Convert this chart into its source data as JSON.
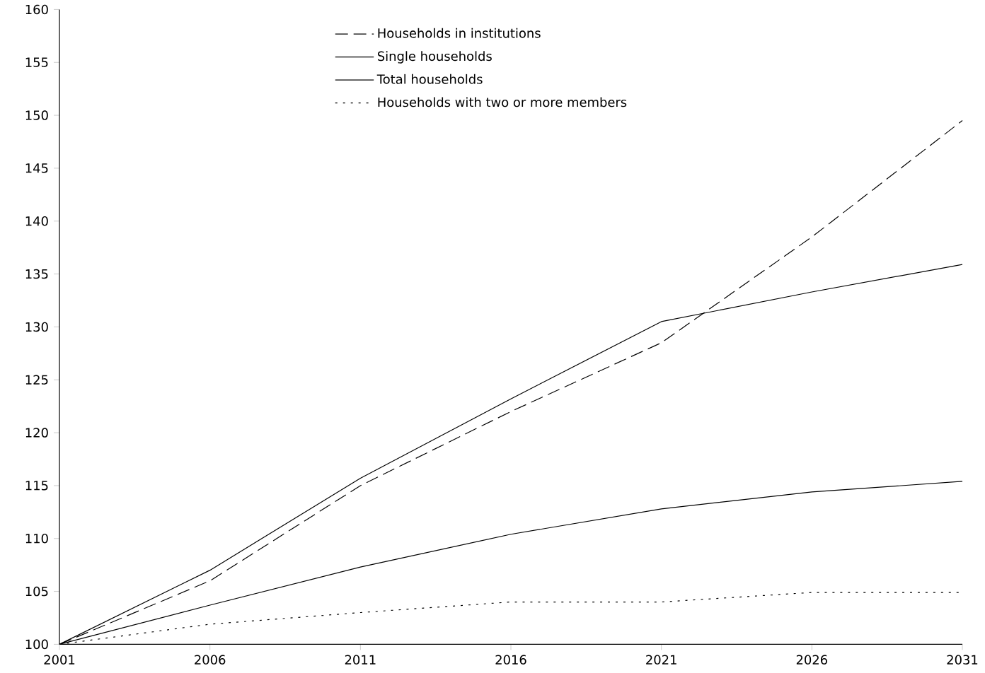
{
  "chart_data": {
    "type": "line",
    "x": [
      2001,
      2006,
      2011,
      2016,
      2021,
      2026,
      2031
    ],
    "xlim": [
      2001,
      2031
    ],
    "xticks": [
      2001,
      2006,
      2011,
      2016,
      2021,
      2026,
      2031
    ],
    "ylim": [
      100,
      160
    ],
    "yticks": [
      100,
      105,
      110,
      115,
      120,
      125,
      130,
      135,
      140,
      145,
      150,
      155,
      160
    ],
    "grid": false,
    "legend": "top",
    "marker": "none",
    "series": [
      {
        "name": "Households in institutions",
        "color": "#000000",
        "line_style": "dashed",
        "values": [
          100,
          106,
          115,
          122,
          128.5,
          138.5,
          149.5
        ]
      },
      {
        "name": "Single households",
        "color": "#000000",
        "line_style": "solid",
        "values": [
          100,
          107,
          115.7,
          123.2,
          130.5,
          133.3,
          135.9
        ]
      },
      {
        "name": "Total households",
        "color": "#000000",
        "line_style": "solid",
        "values": [
          100,
          103.7,
          107.3,
          110.4,
          112.8,
          114.4,
          115.4
        ]
      },
      {
        "name": "Households with two or more members",
        "color": "#000000",
        "line_style": "dotted",
        "values": [
          100,
          101.9,
          103,
          104,
          104,
          104.9,
          104.9
        ]
      }
    ]
  }
}
